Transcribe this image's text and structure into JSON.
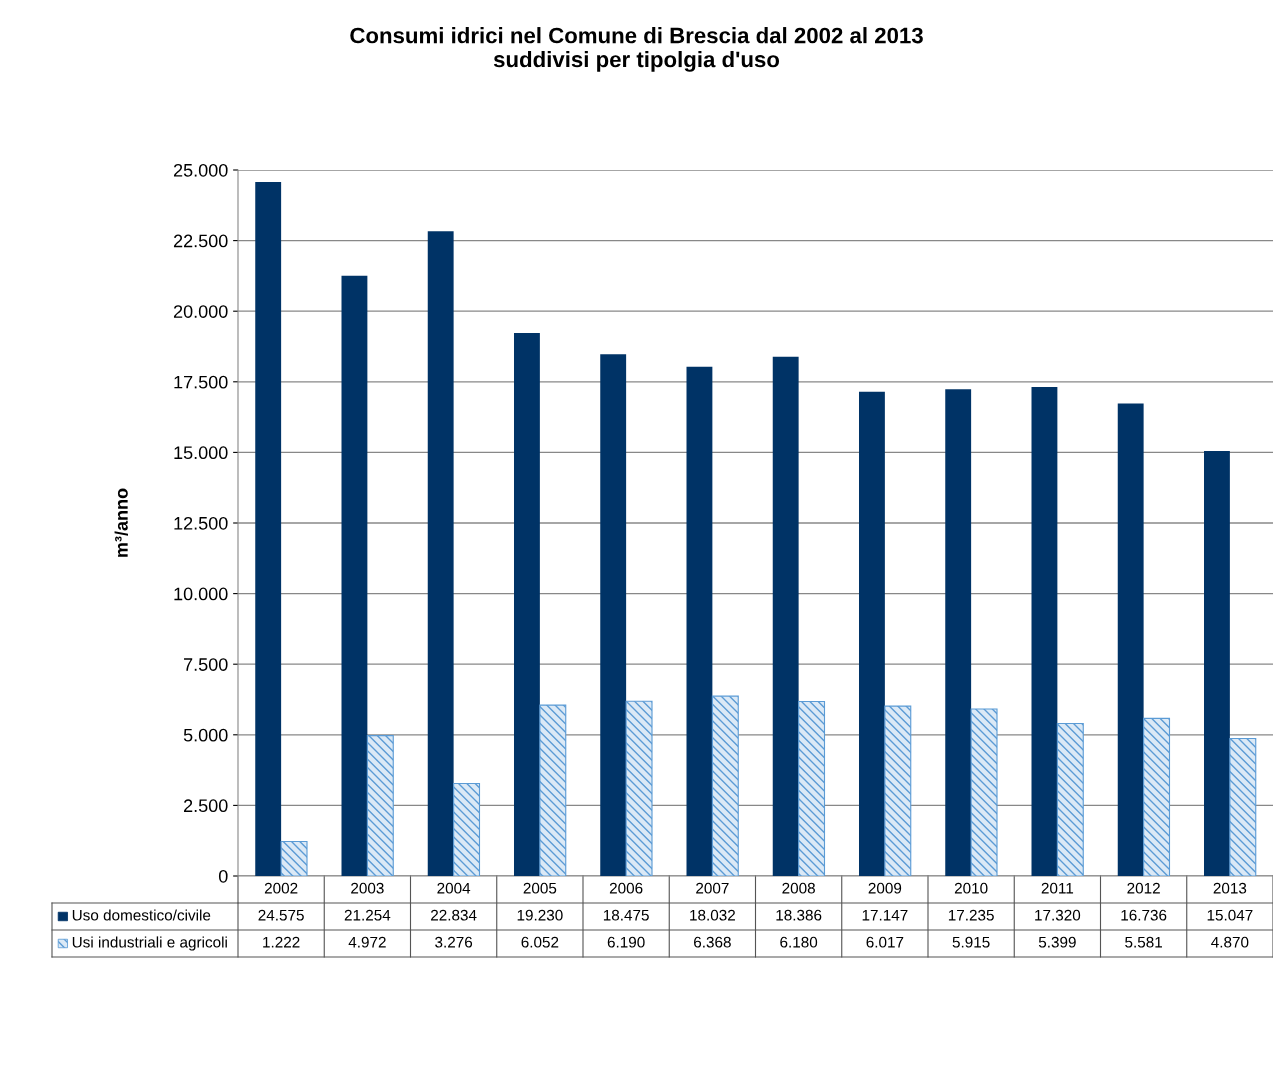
{
  "chart_data": {
    "type": "bar",
    "title": "Consumi idrici nel Comune di Brescia dal 2002 al 2013\nsuddivisi per tipolgia d'uso",
    "ylabel": "m³/anno",
    "categories": [
      "2002",
      "2003",
      "2004",
      "2005",
      "2006",
      "2007",
      "2008",
      "2009",
      "2010",
      "2011",
      "2012",
      "2013"
    ],
    "series": [
      {
        "name": "Uso domestico/civile",
        "color": "#003366",
        "values": [
          24575,
          21254,
          22834,
          19230,
          18475,
          18032,
          18386,
          17147,
          17235,
          17320,
          16736,
          15047
        ],
        "value_labels": [
          "24.575",
          "21.254",
          "22.834",
          "19.230",
          "18.475",
          "18.032",
          "18.386",
          "17.147",
          "17.235",
          "17.320",
          "16.736",
          "15.047"
        ]
      },
      {
        "name": "Usi industriali e agricoli",
        "color": "#5b9bd5",
        "values": [
          1222,
          4972,
          3276,
          6052,
          6190,
          6368,
          6180,
          6017,
          5915,
          5399,
          5581,
          4870
        ],
        "value_labels": [
          "1.222",
          "4.972",
          "3.276",
          "6.052",
          "6.190",
          "6.368",
          "6.180",
          "6.017",
          "5.915",
          "5.399",
          "5.581",
          "4.870"
        ]
      }
    ],
    "ylim": [
      0,
      25000
    ],
    "yticks": [
      0,
      {
        "value": 2500,
        "label": "2.500"
      },
      {
        "value": 5000,
        "label": "5.000"
      },
      {
        "value": 7500,
        "label": "7.500"
      },
      {
        "value": 10000,
        "label": "10.000"
      },
      {
        "value": 12500,
        "label": "12.500"
      },
      {
        "value": 15000,
        "label": "15.000"
      },
      {
        "value": 17500,
        "label": "17.500"
      },
      {
        "value": 20000,
        "label": "20.000"
      },
      {
        "value": 22500,
        "label": "22.500"
      },
      {
        "value": 25000,
        "label": "25.000"
      }
    ],
    "grid": "y",
    "legend": "bottom left"
  }
}
